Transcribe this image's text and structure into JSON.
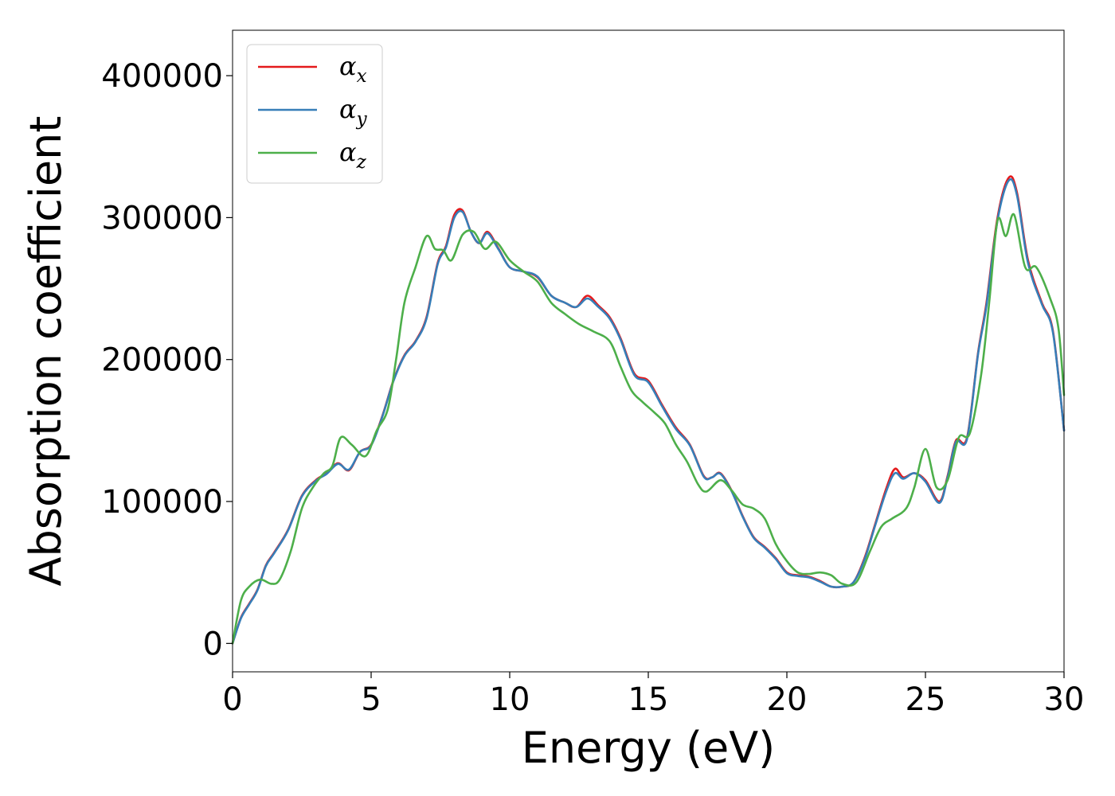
{
  "chart_data": {
    "type": "line",
    "title": "",
    "xlabel": "Energy (eV)",
    "ylabel": "Absorption coefficient",
    "xlim": [
      0,
      30
    ],
    "ylim": [
      -20000,
      432000
    ],
    "xticks": [
      0,
      5,
      10,
      15,
      20,
      25,
      30
    ],
    "xtick_labels": [
      "0",
      "5",
      "10",
      "15",
      "20",
      "25",
      "30"
    ],
    "yticks": [
      0,
      100000,
      200000,
      300000,
      400000
    ],
    "ytick_labels": [
      "0",
      "100000",
      "200000",
      "300000",
      "400000"
    ],
    "grid": false,
    "legend_position": "top-left",
    "series": [
      {
        "name": "α",
        "sub": "x",
        "color": "#e41a1c",
        "points": [
          [
            0,
            0
          ],
          [
            0.3,
            18000
          ],
          [
            0.6,
            28000
          ],
          [
            0.9,
            38000
          ],
          [
            1.2,
            55000
          ],
          [
            1.5,
            64000
          ],
          [
            2.0,
            80000
          ],
          [
            2.5,
            104000
          ],
          [
            3.0,
            115000
          ],
          [
            3.4,
            120000
          ],
          [
            3.8,
            127000
          ],
          [
            4.2,
            122000
          ],
          [
            4.6,
            135000
          ],
          [
            5.0,
            140000
          ],
          [
            5.4,
            160000
          ],
          [
            5.8,
            185000
          ],
          [
            6.2,
            203000
          ],
          [
            6.6,
            213000
          ],
          [
            7.0,
            230000
          ],
          [
            7.4,
            268000
          ],
          [
            7.7,
            280000
          ],
          [
            8.0,
            302000
          ],
          [
            8.3,
            305000
          ],
          [
            8.6,
            290000
          ],
          [
            8.9,
            282000
          ],
          [
            9.2,
            290000
          ],
          [
            9.6,
            278000
          ],
          [
            10.0,
            265000
          ],
          [
            10.5,
            262000
          ],
          [
            11.0,
            258000
          ],
          [
            11.5,
            245000
          ],
          [
            12.0,
            240000
          ],
          [
            12.4,
            237000
          ],
          [
            12.8,
            245000
          ],
          [
            13.2,
            238000
          ],
          [
            13.6,
            230000
          ],
          [
            14.0,
            215000
          ],
          [
            14.5,
            190000
          ],
          [
            15.0,
            185000
          ],
          [
            15.5,
            168000
          ],
          [
            16.0,
            152000
          ],
          [
            16.5,
            140000
          ],
          [
            17.0,
            118000
          ],
          [
            17.3,
            117000
          ],
          [
            17.6,
            120000
          ],
          [
            18.0,
            108000
          ],
          [
            18.4,
            90000
          ],
          [
            18.8,
            75000
          ],
          [
            19.2,
            68000
          ],
          [
            19.6,
            60000
          ],
          [
            20.0,
            50000
          ],
          [
            20.4,
            48000
          ],
          [
            20.8,
            47000
          ],
          [
            21.2,
            44000
          ],
          [
            21.6,
            40000
          ],
          [
            22.0,
            40000
          ],
          [
            22.4,
            43000
          ],
          [
            22.8,
            60000
          ],
          [
            23.2,
            85000
          ],
          [
            23.6,
            110000
          ],
          [
            23.9,
            123000
          ],
          [
            24.2,
            117000
          ],
          [
            24.6,
            120000
          ],
          [
            25.0,
            115000
          ],
          [
            25.5,
            100000
          ],
          [
            25.8,
            118000
          ],
          [
            26.1,
            143000
          ],
          [
            26.5,
            145000
          ],
          [
            26.9,
            205000
          ],
          [
            27.2,
            240000
          ],
          [
            27.6,
            300000
          ],
          [
            28.0,
            328000
          ],
          [
            28.3,
            318000
          ],
          [
            28.7,
            270000
          ],
          [
            29.2,
            240000
          ],
          [
            29.6,
            220000
          ],
          [
            30.0,
            150000
          ]
        ]
      },
      {
        "name": "α",
        "sub": "y",
        "color": "#377eb8",
        "points": [
          [
            0,
            0
          ],
          [
            0.3,
            17500
          ],
          [
            0.6,
            27500
          ],
          [
            0.9,
            37500
          ],
          [
            1.2,
            54500
          ],
          [
            1.5,
            63500
          ],
          [
            2.0,
            79500
          ],
          [
            2.5,
            103500
          ],
          [
            3.0,
            114500
          ],
          [
            3.4,
            119500
          ],
          [
            3.8,
            126500
          ],
          [
            4.2,
            122500
          ],
          [
            4.6,
            135000
          ],
          [
            5.0,
            139500
          ],
          [
            5.4,
            159500
          ],
          [
            5.8,
            184500
          ],
          [
            6.2,
            202500
          ],
          [
            6.6,
            212500
          ],
          [
            7.0,
            229000
          ],
          [
            7.4,
            267000
          ],
          [
            7.7,
            279000
          ],
          [
            8.0,
            300000
          ],
          [
            8.3,
            304000
          ],
          [
            8.6,
            290000
          ],
          [
            8.9,
            282000
          ],
          [
            9.2,
            289000
          ],
          [
            9.6,
            277500
          ],
          [
            10.0,
            265000
          ],
          [
            10.5,
            262000
          ],
          [
            11.0,
            258500
          ],
          [
            11.5,
            245000
          ],
          [
            12.0,
            240000
          ],
          [
            12.4,
            237000
          ],
          [
            12.8,
            243000
          ],
          [
            13.2,
            237000
          ],
          [
            13.6,
            229000
          ],
          [
            14.0,
            214000
          ],
          [
            14.5,
            189000
          ],
          [
            15.0,
            184000
          ],
          [
            15.5,
            167000
          ],
          [
            16.0,
            151000
          ],
          [
            16.5,
            139500
          ],
          [
            17.0,
            117500
          ],
          [
            17.3,
            117000
          ],
          [
            17.6,
            119500
          ],
          [
            18.0,
            107500
          ],
          [
            18.4,
            89500
          ],
          [
            18.8,
            74500
          ],
          [
            19.2,
            67500
          ],
          [
            19.6,
            59500
          ],
          [
            20.0,
            49500
          ],
          [
            20.4,
            47500
          ],
          [
            20.8,
            46500
          ],
          [
            21.2,
            43500
          ],
          [
            21.6,
            40000
          ],
          [
            22.0,
            40000
          ],
          [
            22.4,
            43000
          ],
          [
            22.8,
            59000
          ],
          [
            23.2,
            84000
          ],
          [
            23.6,
            108000
          ],
          [
            23.9,
            120000
          ],
          [
            24.2,
            116000
          ],
          [
            24.6,
            120000
          ],
          [
            25.0,
            114000
          ],
          [
            25.5,
            99000
          ],
          [
            25.8,
            117000
          ],
          [
            26.1,
            142000
          ],
          [
            26.5,
            144000
          ],
          [
            26.9,
            204000
          ],
          [
            27.2,
            238000
          ],
          [
            27.6,
            298000
          ],
          [
            28.0,
            326000
          ],
          [
            28.3,
            316000
          ],
          [
            28.7,
            268000
          ],
          [
            29.2,
            239000
          ],
          [
            29.6,
            219000
          ],
          [
            30.0,
            150000
          ]
        ]
      },
      {
        "name": "α",
        "sub": "z",
        "color": "#4daf4a",
        "points": [
          [
            0,
            0
          ],
          [
            0.3,
            30000
          ],
          [
            0.6,
            40000
          ],
          [
            1.0,
            45000
          ],
          [
            1.4,
            42000
          ],
          [
            1.7,
            45000
          ],
          [
            2.1,
            65000
          ],
          [
            2.5,
            95000
          ],
          [
            2.9,
            110000
          ],
          [
            3.3,
            120000
          ],
          [
            3.6,
            125000
          ],
          [
            3.9,
            145000
          ],
          [
            4.3,
            140000
          ],
          [
            4.8,
            132000
          ],
          [
            5.2,
            150000
          ],
          [
            5.6,
            165000
          ],
          [
            5.9,
            200000
          ],
          [
            6.2,
            240000
          ],
          [
            6.6,
            265000
          ],
          [
            7.0,
            287000
          ],
          [
            7.3,
            278000
          ],
          [
            7.6,
            277000
          ],
          [
            7.9,
            270000
          ],
          [
            8.3,
            288000
          ],
          [
            8.7,
            290000
          ],
          [
            9.1,
            278000
          ],
          [
            9.5,
            283000
          ],
          [
            10.0,
            270000
          ],
          [
            10.5,
            262000
          ],
          [
            11.0,
            255000
          ],
          [
            11.5,
            240000
          ],
          [
            12.0,
            232000
          ],
          [
            12.5,
            225000
          ],
          [
            13.0,
            220000
          ],
          [
            13.6,
            213000
          ],
          [
            14.0,
            195000
          ],
          [
            14.4,
            178000
          ],
          [
            14.8,
            170000
          ],
          [
            15.2,
            163000
          ],
          [
            15.6,
            155000
          ],
          [
            16.0,
            140000
          ],
          [
            16.4,
            128000
          ],
          [
            16.8,
            112000
          ],
          [
            17.1,
            107000
          ],
          [
            17.6,
            115000
          ],
          [
            18.0,
            108000
          ],
          [
            18.4,
            98000
          ],
          [
            18.8,
            95000
          ],
          [
            19.2,
            88000
          ],
          [
            19.6,
            70000
          ],
          [
            20.0,
            58000
          ],
          [
            20.4,
            50000
          ],
          [
            20.8,
            49000
          ],
          [
            21.2,
            50000
          ],
          [
            21.6,
            48000
          ],
          [
            22.0,
            42000
          ],
          [
            22.5,
            43000
          ],
          [
            23.0,
            65000
          ],
          [
            23.4,
            82000
          ],
          [
            23.8,
            88000
          ],
          [
            24.3,
            95000
          ],
          [
            24.6,
            110000
          ],
          [
            25.0,
            137000
          ],
          [
            25.4,
            110000
          ],
          [
            25.8,
            115000
          ],
          [
            26.2,
            145000
          ],
          [
            26.6,
            148000
          ],
          [
            27.0,
            188000
          ],
          [
            27.3,
            240000
          ],
          [
            27.6,
            298000
          ],
          [
            27.9,
            287000
          ],
          [
            28.2,
            302000
          ],
          [
            28.6,
            265000
          ],
          [
            29.0,
            265000
          ],
          [
            29.5,
            243000
          ],
          [
            29.8,
            222000
          ],
          [
            30.0,
            175000
          ]
        ]
      }
    ]
  }
}
